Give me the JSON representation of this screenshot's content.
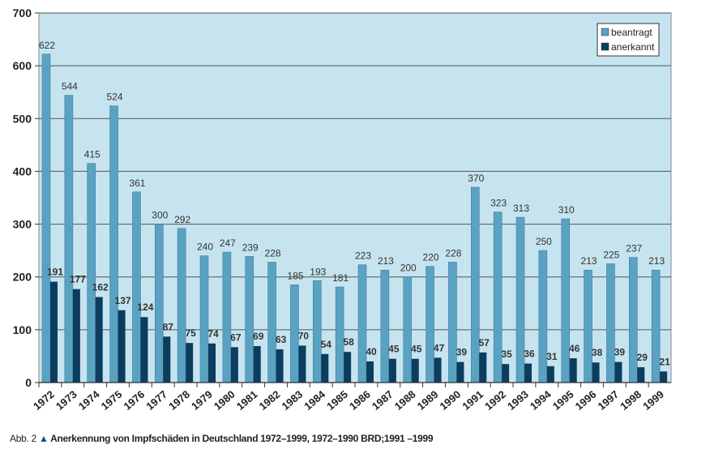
{
  "chart_data": {
    "type": "bar",
    "categories": [
      "1972",
      "1973",
      "1974",
      "1975",
      "1976",
      "1977",
      "1978",
      "1979",
      "1980",
      "1981",
      "1982",
      "1983",
      "1984",
      "1985",
      "1986",
      "1987",
      "1988",
      "1989",
      "1990",
      "1991",
      "1992",
      "1993",
      "1994",
      "1995",
      "1996",
      "1997",
      "1998",
      "1999"
    ],
    "series": [
      {
        "name": "beantragt",
        "color": "#5aa2c2",
        "values": [
          622,
          544,
          415,
          524,
          361,
          300,
          292,
          240,
          247,
          239,
          228,
          185,
          193,
          181,
          223,
          213,
          200,
          220,
          228,
          370,
          323,
          313,
          250,
          310,
          213,
          225,
          237,
          213
        ]
      },
      {
        "name": "anerkannt",
        "color": "#0c3d5e",
        "values": [
          191,
          177,
          162,
          137,
          124,
          87,
          75,
          74,
          67,
          69,
          63,
          70,
          54,
          58,
          40,
          45,
          45,
          47,
          39,
          57,
          35,
          36,
          31,
          46,
          38,
          39,
          29,
          21
        ]
      }
    ],
    "ylim": [
      0,
      700
    ],
    "yticks": [
      0,
      100,
      200,
      300,
      400,
      500,
      600,
      700
    ],
    "grid": true,
    "legend": "top-right",
    "plot_background": "#c6e4ef"
  },
  "caption": {
    "prefix": "Abb. 2",
    "icon": "triangle-up-icon",
    "text": "Anerkennung von Impfschäden in Deutschland 1972–1999, 1972–1990 BRD;1991 –1999"
  }
}
